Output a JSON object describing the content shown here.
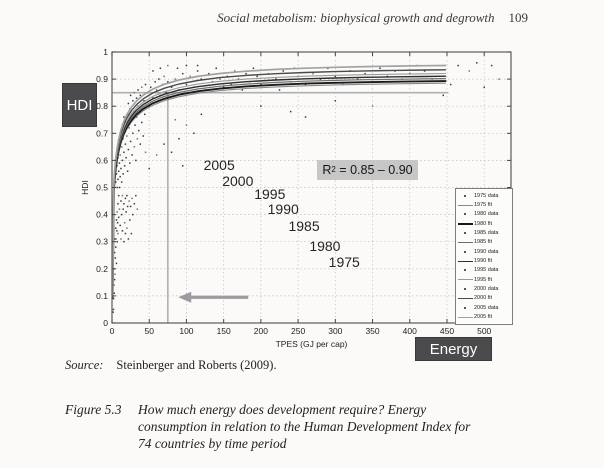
{
  "header": {
    "title": "Social metabolism: biophysical growth and degrowth",
    "page_number": "109"
  },
  "side_labels": {
    "hdi_box": "HDI",
    "energy_box": "Energy",
    "box_bg": "#4b4b4d",
    "box_fg": "#ffffff"
  },
  "chart_data": {
    "type": "scatter",
    "xlabel": "TPES (GJ per cap)",
    "ylabel": "HDI",
    "xlim": [
      0,
      536
    ],
    "ylim": [
      0,
      1
    ],
    "xticks": [
      0,
      50,
      100,
      150,
      200,
      250,
      300,
      350,
      400,
      450,
      500
    ],
    "yticks": [
      0,
      0.1,
      0.2,
      0.3,
      0.4,
      0.5,
      0.6,
      0.7,
      0.8,
      0.9,
      1
    ],
    "grid": true,
    "scatter_color": "#3a3a3a",
    "scatter_color_alt": "#757575",
    "annotations": {
      "r2": {
        "prefix": "R",
        "sup": "2",
        "rest": " = 0.85 – 0.90",
        "bg": "#c7c7c7"
      },
      "hdi_threshold_line": {
        "hdi": 0.85,
        "x_end_gj": 452,
        "color": "#b0b0b0"
      },
      "energy_threshold_line": {
        "gj": 75,
        "hdi_top": 0.85,
        "color": "#b0b0b0"
      },
      "arrow": {
        "direction": "left",
        "x_from_gj": 183,
        "x_to_gj": 89,
        "y_hdi": 0.095,
        "color": "#9c9ca0"
      },
      "year_labels": [
        {
          "text": "2005",
          "x_gj": 144,
          "y_hdi": 0.583
        },
        {
          "text": "2000",
          "x_gj": 169,
          "y_hdi": 0.524
        },
        {
          "text": "1995",
          "x_gj": 212,
          "y_hdi": 0.476
        },
        {
          "text": "1990",
          "x_gj": 230,
          "y_hdi": 0.421
        },
        {
          "text": "1985",
          "x_gj": 258,
          "y_hdi": 0.358
        },
        {
          "text": "1980",
          "x_gj": 286,
          "y_hdi": 0.284
        },
        {
          "text": "1975",
          "x_gj": 312,
          "y_hdi": 0.225
        }
      ]
    },
    "series": [
      {
        "name": "1975 fit",
        "saturation": 0.892,
        "tau": 5,
        "exponent": 0.35,
        "x_max_gj": 448,
        "color": "#8a8a8a",
        "width": 1.1
      },
      {
        "name": "1980 fit",
        "saturation": 0.9,
        "tau": 5,
        "exponent": 0.35,
        "x_max_gj": 448,
        "color": "#1a1a1a",
        "width": 1.9
      },
      {
        "name": "1985 fit",
        "saturation": 0.909,
        "tau": 5,
        "exponent": 0.35,
        "x_max_gj": 448,
        "color": "#6e6e6e",
        "width": 1.2
      },
      {
        "name": "1990 fit",
        "saturation": 0.918,
        "tau": 5,
        "exponent": 0.35,
        "x_max_gj": 448,
        "color": "#2e2e2e",
        "width": 1.4
      },
      {
        "name": "1995 fit",
        "saturation": 0.928,
        "tau": 5,
        "exponent": 0.35,
        "x_max_gj": 448,
        "color": "#9a9a9a",
        "width": 1.1
      },
      {
        "name": "2000 fit",
        "saturation": 0.942,
        "tau": 5,
        "exponent": 0.35,
        "x_max_gj": 448,
        "color": "#4a4a4a",
        "width": 1.4
      },
      {
        "name": "2005 fit",
        "saturation": 0.958,
        "tau": 5,
        "exponent": 0.35,
        "x_max_gj": 448,
        "color": "#a2a2a2",
        "width": 1.7
      }
    ],
    "legend": {
      "position": "lower right",
      "entries": [
        {
          "label": "1975 data",
          "type": "marker",
          "color": "#555555"
        },
        {
          "label": "1975 fit",
          "type": "line",
          "color": "#8a8a8a",
          "width": 1
        },
        {
          "label": "1980 data",
          "type": "marker",
          "color": "#555555"
        },
        {
          "label": "1980 fit",
          "type": "line",
          "color": "#1a1a1a",
          "width": 2
        },
        {
          "label": "1985 data",
          "type": "marker",
          "color": "#555555"
        },
        {
          "label": "1985 fit",
          "type": "line",
          "color": "#6e6e6e",
          "width": 1
        },
        {
          "label": "1990 data",
          "type": "marker",
          "color": "#555555"
        },
        {
          "label": "1990 fit",
          "type": "line",
          "color": "#2e2e2e",
          "width": 1.5
        },
        {
          "label": "1995 data",
          "type": "marker",
          "color": "#555555"
        },
        {
          "label": "1995 fit",
          "type": "line",
          "color": "#9a9a9a",
          "width": 1
        },
        {
          "label": "2000 data",
          "type": "marker",
          "color": "#555555"
        },
        {
          "label": "2000 fit",
          "type": "line",
          "color": "#4a4a4a",
          "width": 1.5
        },
        {
          "label": "2005 data",
          "type": "marker",
          "color": "#555555"
        },
        {
          "label": "2005 fit",
          "type": "line",
          "color": "#a2a2a2",
          "width": 1.5
        }
      ]
    },
    "scatter_points": [
      [
        1.5,
        0.04
      ],
      [
        2,
        0.09
      ],
      [
        2.5,
        0.14
      ],
      [
        3,
        0.2
      ],
      [
        3,
        0.11
      ],
      [
        3.5,
        0.26
      ],
      [
        4,
        0.31
      ],
      [
        4,
        0.18
      ],
      [
        4.5,
        0.24
      ],
      [
        5,
        0.35
      ],
      [
        5,
        0.28
      ],
      [
        5.5,
        0.31
      ],
      [
        6,
        0.38
      ],
      [
        6,
        0.22
      ],
      [
        6.5,
        0.34
      ],
      [
        7,
        0.41
      ],
      [
        7,
        0.3
      ],
      [
        7.5,
        0.37
      ],
      [
        8,
        0.44
      ],
      [
        8,
        0.33
      ],
      [
        9,
        0.47
      ],
      [
        9,
        0.39
      ],
      [
        10,
        0.5
      ],
      [
        10,
        0.42
      ],
      [
        2,
        0.05
      ],
      [
        3.5,
        0.16
      ],
      [
        11,
        0.36
      ],
      [
        12,
        0.31
      ],
      [
        12,
        0.45
      ],
      [
        13,
        0.4
      ],
      [
        14,
        0.34
      ],
      [
        14,
        0.47
      ],
      [
        15,
        0.42
      ],
      [
        16,
        0.3
      ],
      [
        16,
        0.44
      ],
      [
        17,
        0.37
      ],
      [
        18,
        0.46
      ],
      [
        18,
        0.33
      ],
      [
        19,
        0.41
      ],
      [
        20,
        0.35
      ],
      [
        20,
        0.47
      ],
      [
        21,
        0.43
      ],
      [
        22,
        0.31
      ],
      [
        23,
        0.45
      ],
      [
        24,
        0.38
      ],
      [
        25,
        0.43
      ],
      [
        26,
        0.33
      ],
      [
        27,
        0.46
      ],
      [
        28,
        0.4
      ],
      [
        30,
        0.44
      ],
      [
        32,
        0.47
      ],
      [
        34,
        0.42
      ],
      [
        5,
        0.52
      ],
      [
        6,
        0.55
      ],
      [
        7,
        0.5
      ],
      [
        7,
        0.58
      ],
      [
        8,
        0.53
      ],
      [
        8,
        0.61
      ],
      [
        9,
        0.56
      ],
      [
        9,
        0.64
      ],
      [
        10,
        0.59
      ],
      [
        10,
        0.67
      ],
      [
        11,
        0.54
      ],
      [
        11,
        0.62
      ],
      [
        12,
        0.57
      ],
      [
        12,
        0.7
      ],
      [
        13,
        0.52
      ],
      [
        13,
        0.65
      ],
      [
        14,
        0.6
      ],
      [
        14,
        0.73
      ],
      [
        15,
        0.55
      ],
      [
        15,
        0.68
      ],
      [
        16,
        0.63
      ],
      [
        16,
        0.76
      ],
      [
        17,
        0.58
      ],
      [
        17,
        0.71
      ],
      [
        18,
        0.66
      ],
      [
        19,
        0.61
      ],
      [
        19,
        0.74
      ],
      [
        20,
        0.69
      ],
      [
        21,
        0.56
      ],
      [
        21,
        0.77
      ],
      [
        22,
        0.64
      ],
      [
        23,
        0.72
      ],
      [
        24,
        0.59
      ],
      [
        24,
        0.79
      ],
      [
        25,
        0.67
      ],
      [
        26,
        0.75
      ],
      [
        27,
        0.62
      ],
      [
        28,
        0.7
      ],
      [
        29,
        0.78
      ],
      [
        30,
        0.65
      ],
      [
        31,
        0.73
      ],
      [
        32,
        0.6
      ],
      [
        33,
        0.76
      ],
      [
        34,
        0.68
      ],
      [
        35,
        0.8
      ],
      [
        36,
        0.71
      ],
      [
        38,
        0.66
      ],
      [
        38,
        0.78
      ],
      [
        40,
        0.74
      ],
      [
        42,
        0.69
      ],
      [
        44,
        0.77
      ],
      [
        45,
        0.63
      ],
      [
        22,
        0.81
      ],
      [
        25,
        0.84
      ],
      [
        28,
        0.82
      ],
      [
        30,
        0.85
      ],
      [
        33,
        0.83
      ],
      [
        35,
        0.86
      ],
      [
        38,
        0.84
      ],
      [
        40,
        0.87
      ],
      [
        43,
        0.82
      ],
      [
        45,
        0.88
      ],
      [
        48,
        0.85
      ],
      [
        50,
        0.8
      ],
      [
        52,
        0.87
      ],
      [
        55,
        0.83
      ],
      [
        58,
        0.89
      ],
      [
        60,
        0.86
      ],
      [
        63,
        0.9
      ],
      [
        65,
        0.84
      ],
      [
        68,
        0.88
      ],
      [
        70,
        0.91
      ],
      [
        73,
        0.85
      ],
      [
        75,
        0.89
      ],
      [
        80,
        0.87
      ],
      [
        85,
        0.9
      ],
      [
        90,
        0.86
      ],
      [
        95,
        0.92
      ],
      [
        100,
        0.88
      ],
      [
        105,
        0.91
      ],
      [
        110,
        0.87
      ],
      [
        115,
        0.93
      ],
      [
        120,
        0.9
      ],
      [
        125,
        0.86
      ],
      [
        130,
        0.92
      ],
      [
        135,
        0.89
      ],
      [
        140,
        0.94
      ],
      [
        145,
        0.9
      ],
      [
        150,
        0.87
      ],
      [
        55,
        0.93
      ],
      [
        65,
        0.94
      ],
      [
        75,
        0.95
      ],
      [
        88,
        0.94
      ],
      [
        100,
        0.95
      ],
      [
        115,
        0.95
      ],
      [
        60,
        0.62
      ],
      [
        70,
        0.66
      ],
      [
        80,
        0.63
      ],
      [
        90,
        0.68
      ],
      [
        100,
        0.73
      ],
      [
        110,
        0.7
      ],
      [
        120,
        0.77
      ],
      [
        95,
        0.58
      ],
      [
        85,
        0.75
      ],
      [
        50,
        0.57
      ],
      [
        155,
        0.91
      ],
      [
        160,
        0.88
      ],
      [
        165,
        0.93
      ],
      [
        170,
        0.9
      ],
      [
        175,
        0.86
      ],
      [
        180,
        0.92
      ],
      [
        185,
        0.89
      ],
      [
        190,
        0.94
      ],
      [
        195,
        0.91
      ],
      [
        200,
        0.88
      ],
      [
        210,
        0.92
      ],
      [
        220,
        0.9
      ],
      [
        225,
        0.86
      ],
      [
        230,
        0.93
      ],
      [
        240,
        0.89
      ],
      [
        245,
        0.94
      ],
      [
        250,
        0.91
      ],
      [
        260,
        0.88
      ],
      [
        270,
        0.92
      ],
      [
        280,
        0.9
      ],
      [
        290,
        0.94
      ],
      [
        300,
        0.91
      ],
      [
        310,
        0.88
      ],
      [
        320,
        0.93
      ],
      [
        330,
        0.9
      ],
      [
        340,
        0.92
      ],
      [
        350,
        0.89
      ],
      [
        360,
        0.94
      ],
      [
        370,
        0.91
      ],
      [
        380,
        0.93
      ],
      [
        390,
        0.9
      ],
      [
        400,
        0.92
      ],
      [
        410,
        0.95
      ],
      [
        420,
        0.93
      ],
      [
        430,
        0.9
      ],
      [
        200,
        0.8
      ],
      [
        240,
        0.78
      ],
      [
        300,
        0.82
      ],
      [
        350,
        0.8
      ],
      [
        260,
        0.76
      ],
      [
        455,
        0.88
      ],
      [
        465,
        0.95
      ],
      [
        480,
        0.93
      ],
      [
        490,
        0.96
      ],
      [
        500,
        0.87
      ],
      [
        510,
        0.95
      ],
      [
        520,
        0.9
      ],
      [
        445,
        0.84
      ]
    ]
  },
  "source_line": {
    "label": "Source:",
    "text": "Steinberger and Roberts (2009)."
  },
  "caption": {
    "number": "Figure 5.3",
    "lines": [
      "How much energy does development require? Energy",
      "consumption in relation to the Human Development Index for",
      "74 countries by time period"
    ]
  }
}
